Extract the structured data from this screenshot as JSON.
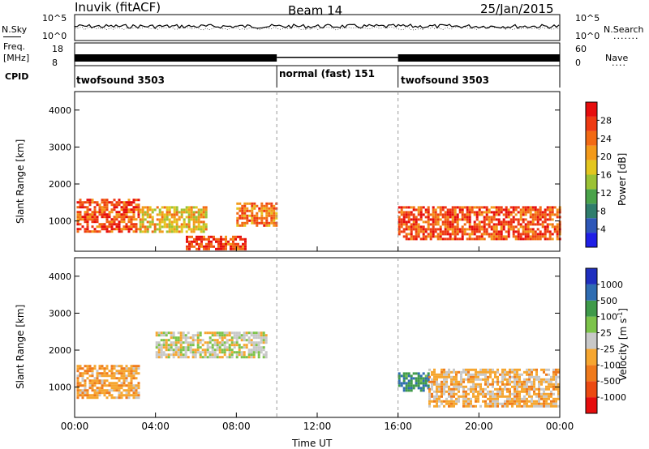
{
  "header": {
    "station": "Inuvik (fitACF)",
    "beam": "Beam 14",
    "date": "25/Jan/2015"
  },
  "top_panels": {
    "noise_left": "N.Sky",
    "noise_right": "N.Search",
    "noise_tick_top": "10^5",
    "noise_tick_bottom": "10^0",
    "freq_label_1": "Freq.",
    "freq_label_2": "[MHz]",
    "freq_tick_top": "18",
    "freq_tick_bottom": "8",
    "nave_label": "Nave",
    "nave_tick_top": "60",
    "nave_tick_bottom": "0",
    "cpid_label": "CPID",
    "cpid_segments": [
      {
        "label": "twofsound 3503",
        "start_hour": 0
      },
      {
        "label": "normal (fast) 151",
        "start_hour": 10
      },
      {
        "label": "twofsound 3503",
        "start_hour": 16
      }
    ]
  },
  "axis_titles": {
    "y": "Slant Range [km]",
    "x": "Time UT",
    "power": "Power [dB]",
    "velocity_a": "Velocity [m s",
    "velocity_sup": "-1",
    "velocity_b": "]"
  },
  "chart_data": [
    {
      "type": "heatmap",
      "title": "Power",
      "xlabel": "Time UT",
      "ylabel": "Slant Range [km]",
      "x_ticks": [
        "00:00",
        "04:00",
        "08:00",
        "12:00",
        "16:00",
        "20:00",
        "00:00"
      ],
      "x_range_hours": [
        0,
        24
      ],
      "y_ticks": [
        "1000",
        "2000",
        "3000",
        "4000"
      ],
      "y_range_km": [
        180,
        4500
      ],
      "colorbar": {
        "label": "Power [dB]",
        "ticks": [
          "4",
          "8",
          "12",
          "16",
          "20",
          "24",
          "28"
        ],
        "range": [
          0,
          32
        ],
        "colors": [
          "#1f1fe6",
          "#2e57b8",
          "#2f7d6c",
          "#4aa34a",
          "#9bc235",
          "#e3c61f",
          "#f39a1a",
          "#f26a14",
          "#ee3a12",
          "#e60d0d"
        ]
      },
      "bands": [
        {
          "t0": 0.1,
          "t1": 3.2,
          "r0": 700,
          "r1": 1600,
          "level": 0.85
        },
        {
          "t0": 3.2,
          "t1": 6.5,
          "r0": 700,
          "r1": 1400,
          "level": 0.6
        },
        {
          "t0": 5.5,
          "t1": 8.5,
          "r0": 250,
          "r1": 600,
          "level": 0.9
        },
        {
          "t0": 8.0,
          "t1": 10.0,
          "r0": 900,
          "r1": 1500,
          "level": 0.75
        },
        {
          "t0": 16.0,
          "t1": 24.0,
          "r0": 500,
          "r1": 1400,
          "level": 0.85
        }
      ]
    },
    {
      "type": "heatmap",
      "title": "Velocity",
      "xlabel": "Time UT",
      "ylabel": "Slant Range [km]",
      "x_ticks": [
        "00:00",
        "04:00",
        "08:00",
        "12:00",
        "16:00",
        "20:00",
        "00:00"
      ],
      "x_range_hours": [
        0,
        24
      ],
      "y_ticks": [
        "1000",
        "2000",
        "3000",
        "4000"
      ],
      "y_range_km": [
        180,
        4500
      ],
      "colorbar": {
        "label": "Velocity [m s^-1]",
        "ticks": [
          "1000",
          "500",
          "100",
          "25",
          "-25",
          "-100",
          "-500",
          "-1000"
        ],
        "colors": [
          "#1f2fbf",
          "#2f6db2",
          "#3f9a4a",
          "#7cc34a",
          "#c8c8c8",
          "#f6a630",
          "#ef7a1c",
          "#ec4a12",
          "#e60d0d"
        ]
      },
      "bands": [
        {
          "t0": 0.1,
          "t1": 3.2,
          "r0": 700,
          "r1": 1600,
          "velocity": -300
        },
        {
          "t0": 4.0,
          "t1": 9.5,
          "r0": 1800,
          "r1": 2500,
          "velocity": 0
        },
        {
          "t0": 16.0,
          "t1": 17.5,
          "r0": 900,
          "r1": 1400,
          "velocity": 600
        },
        {
          "t0": 17.5,
          "t1": 24.0,
          "r0": 500,
          "r1": 1500,
          "velocity": -200
        }
      ]
    }
  ]
}
